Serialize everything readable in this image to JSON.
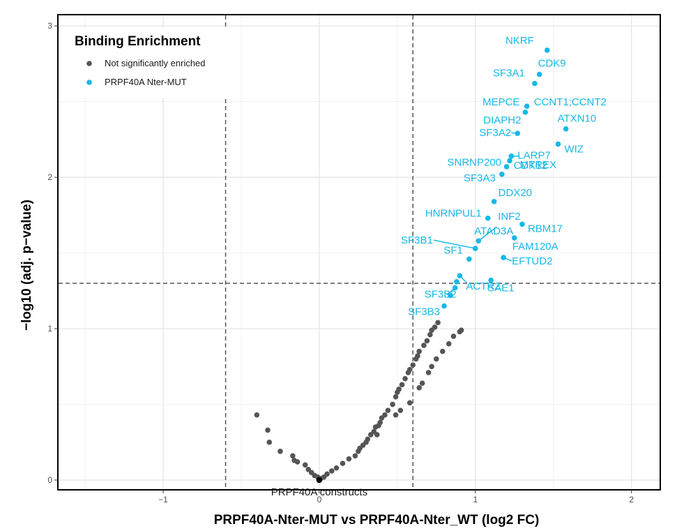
{
  "chart_data": {
    "type": "scatter",
    "title": "",
    "xlabel": "PRPF40A-Nter-MUT vs PRPF40A-Nter_WT (log2 FC)",
    "ylabel": "−log10 (adj. p−value)",
    "xlim": [
      -1.67,
      2.18
    ],
    "ylim": [
      -0.06,
      3.07
    ],
    "x_ticks": [
      -1,
      0,
      1,
      2
    ],
    "x_tick_labels": [
      "−1",
      "0",
      "1",
      "2"
    ],
    "y_ticks": [
      0,
      1,
      2,
      3
    ],
    "y_tick_labels": [
      "0",
      "1",
      "2",
      "3"
    ],
    "grid": true,
    "thresholds": {
      "x": [
        -0.6,
        0.6
      ],
      "y": 1.3
    },
    "legend": {
      "title": "Binding Enrichment",
      "position": "top-left",
      "entries": [
        {
          "label": "Not significantly enriched",
          "color": "#555555"
        },
        {
          "label": "PRPF40A Nter-MUT",
          "color": "#17b8e6"
        }
      ]
    },
    "series": [
      {
        "name": "Not significantly enriched",
        "color": "#555555",
        "points": [
          [
            -0.4,
            0.43
          ],
          [
            -0.33,
            0.33
          ],
          [
            -0.32,
            0.25
          ],
          [
            -0.25,
            0.19
          ],
          [
            -0.17,
            0.16
          ],
          [
            -0.16,
            0.13
          ],
          [
            -0.14,
            0.12
          ],
          [
            -0.09,
            0.1
          ],
          [
            -0.07,
            0.07
          ],
          [
            -0.05,
            0.05
          ],
          [
            -0.03,
            0.03
          ],
          [
            -0.01,
            0.02
          ],
          [
            0.01,
            0.01
          ],
          [
            0.03,
            0.02
          ],
          [
            0.05,
            0.04
          ],
          [
            0.08,
            0.06
          ],
          [
            0.11,
            0.08
          ],
          [
            0.15,
            0.11
          ],
          [
            0.19,
            0.14
          ],
          [
            0.23,
            0.16
          ],
          [
            0.25,
            0.19
          ],
          [
            0.26,
            0.21
          ],
          [
            0.28,
            0.23
          ],
          [
            0.3,
            0.25
          ],
          [
            0.31,
            0.27
          ],
          [
            0.33,
            0.3
          ],
          [
            0.35,
            0.32
          ],
          [
            0.36,
            0.35
          ],
          [
            0.38,
            0.36
          ],
          [
            0.37,
            0.3
          ],
          [
            0.39,
            0.38
          ],
          [
            0.4,
            0.41
          ],
          [
            0.42,
            0.43
          ],
          [
            0.44,
            0.46
          ],
          [
            0.47,
            0.5
          ],
          [
            0.49,
            0.55
          ],
          [
            0.5,
            0.58
          ],
          [
            0.51,
            0.6
          ],
          [
            0.53,
            0.63
          ],
          [
            0.55,
            0.67
          ],
          [
            0.52,
            0.46
          ],
          [
            0.49,
            0.43
          ],
          [
            0.57,
            0.71
          ],
          [
            0.58,
            0.73
          ],
          [
            0.6,
            0.76
          ],
          [
            0.62,
            0.8
          ],
          [
            0.63,
            0.82
          ],
          [
            0.64,
            0.85
          ],
          [
            0.67,
            0.89
          ],
          [
            0.69,
            0.92
          ],
          [
            0.71,
            0.96
          ],
          [
            0.72,
            0.99
          ],
          [
            0.74,
            1.01
          ],
          [
            0.76,
            1.04
          ],
          [
            0.58,
            0.51
          ],
          [
            0.64,
            0.61
          ],
          [
            0.66,
            0.64
          ],
          [
            0.7,
            0.71
          ],
          [
            0.72,
            0.75
          ],
          [
            0.75,
            0.8
          ],
          [
            0.79,
            0.85
          ],
          [
            0.83,
            0.9
          ],
          [
            0.86,
            0.95
          ],
          [
            0.9,
            0.98
          ],
          [
            0.91,
            0.99
          ]
        ]
      },
      {
        "name": "PRPF40A Nter-MUT",
        "color": "#17b8e6",
        "points": [
          [
            0.8,
            1.15
          ],
          [
            0.84,
            1.22
          ],
          [
            0.87,
            1.27
          ],
          [
            0.88,
            1.31
          ],
          [
            0.9,
            1.35
          ],
          [
            1.1,
            1.32
          ],
          [
            0.96,
            1.46
          ],
          [
            1.0,
            1.53
          ],
          [
            1.02,
            1.58
          ],
          [
            1.25,
            1.6
          ],
          [
            1.18,
            1.47
          ],
          [
            1.08,
            1.73
          ],
          [
            1.12,
            1.84
          ],
          [
            1.3,
            1.69
          ],
          [
            1.17,
            2.02
          ],
          [
            1.2,
            2.07
          ],
          [
            1.22,
            2.11
          ],
          [
            1.23,
            2.14
          ],
          [
            1.27,
            2.29
          ],
          [
            1.53,
            2.22
          ],
          [
            1.58,
            2.32
          ],
          [
            1.32,
            2.43
          ],
          [
            1.33,
            2.47
          ],
          [
            1.38,
            2.62
          ],
          [
            1.41,
            2.68
          ],
          [
            1.46,
            2.84
          ]
        ]
      }
    ],
    "point_labels": [
      {
        "text": "NKRF",
        "at": [
          1.46,
          2.84
        ]
      },
      {
        "text": "CDK9",
        "at": [
          1.41,
          2.68
        ]
      },
      {
        "text": "SF3A1",
        "at": [
          1.38,
          2.62
        ]
      },
      {
        "text": "MEPCE",
        "at": [
          1.32,
          2.47
        ]
      },
      {
        "text": "CCNT1;CCNT2",
        "at": [
          1.33,
          2.47
        ]
      },
      {
        "text": "DIAPH2",
        "at": [
          1.32,
          2.43
        ]
      },
      {
        "text": "ATXN10",
        "at": [
          1.58,
          2.32
        ]
      },
      {
        "text": "SF3A2",
        "at": [
          1.27,
          2.29
        ]
      },
      {
        "text": "LARP7",
        "at": [
          1.23,
          2.14
        ]
      },
      {
        "text": "SNRNP200",
        "at": [
          1.22,
          2.11
        ]
      },
      {
        "text": "CDK12",
        "at": [
          1.2,
          2.07
        ]
      },
      {
        "text": "WIZ",
        "at": [
          1.53,
          2.22
        ]
      },
      {
        "text": "SF3A3",
        "at": [
          1.17,
          2.02
        ]
      },
      {
        "text": "MTREX",
        "at": [
          1.2,
          2.07
        ]
      },
      {
        "text": "DDX20",
        "at": [
          1.12,
          1.84
        ]
      },
      {
        "text": "HNRNPUL1",
        "at": [
          1.08,
          1.73
        ]
      },
      {
        "text": "INF2",
        "at": [
          1.02,
          1.58
        ]
      },
      {
        "text": "SF3B1",
        "at": [
          1.0,
          1.53
        ]
      },
      {
        "text": "ATAD3A",
        "at": [
          1.02,
          1.58
        ]
      },
      {
        "text": "RBM17",
        "at": [
          1.3,
          1.69
        ]
      },
      {
        "text": "SF1",
        "at": [
          0.96,
          1.46
        ]
      },
      {
        "text": "FAM120A",
        "at": [
          1.25,
          1.6
        ]
      },
      {
        "text": "ACTR2",
        "at": [
          0.9,
          1.35
        ]
      },
      {
        "text": "EFTUD2",
        "at": [
          1.18,
          1.47
        ]
      },
      {
        "text": "SAE1",
        "at": [
          1.1,
          1.32
        ]
      },
      {
        "text": "SF3B2",
        "at": [
          0.87,
          1.27
        ]
      },
      {
        "text": "SF3B3",
        "at": [
          0.8,
          1.15
        ]
      }
    ],
    "annotations": [
      {
        "text": "PRPF40A constructs",
        "at": [
          0.0,
          0.0
        ]
      }
    ]
  }
}
